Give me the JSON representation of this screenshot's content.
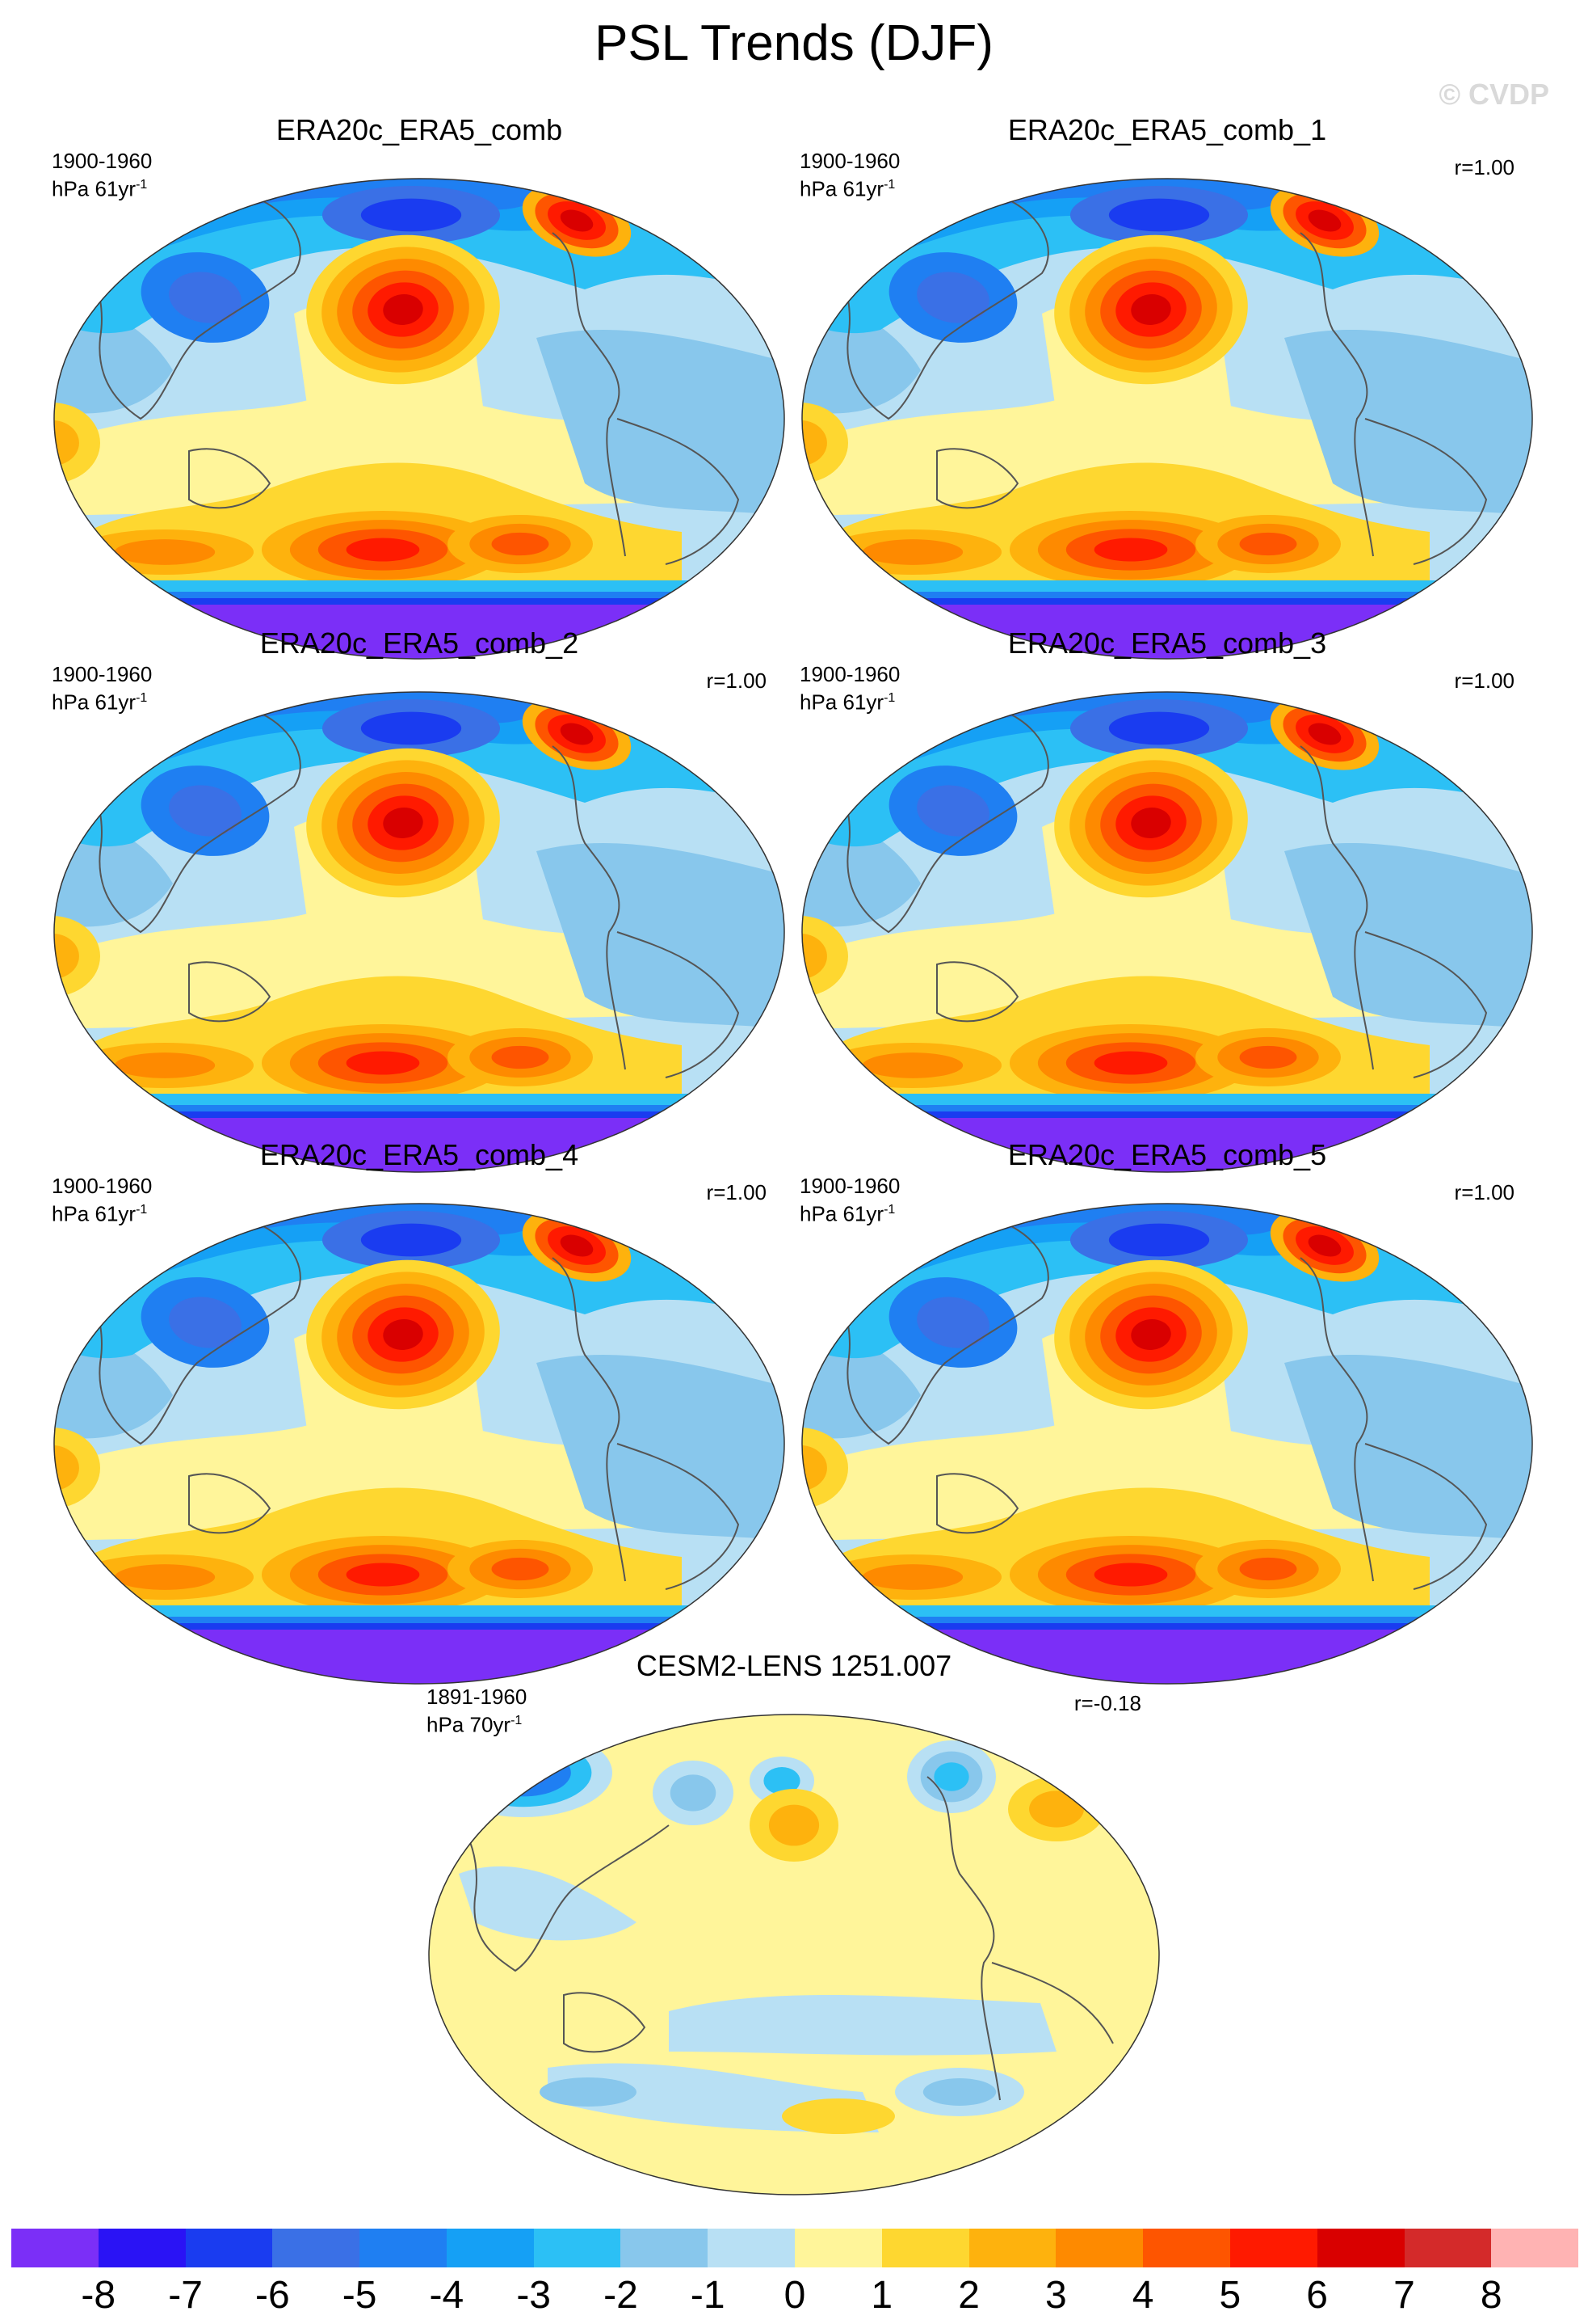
{
  "page": {
    "title": "PSL Trends (DJF)",
    "watermark": "© CVDP"
  },
  "colors": {
    "levels": [
      "#7b2ff7",
      "#2a13f5",
      "#1a3cf0",
      "#3a70e6",
      "#1f7ff2",
      "#15a0f5",
      "#2cc0f5",
      "#88c7ec",
      "#b8e0f4",
      "#fff59a",
      "#fed730",
      "#feb20d",
      "#fe8a00",
      "#fe5500",
      "#ff1a00",
      "#d90000",
      "#d42a2a",
      "#ffb3b3"
    ],
    "land": "#555555"
  },
  "panels": [
    {
      "title": "ERA20c_ERA5_comb",
      "period": "1900-1960",
      "units": "hPa 61yr",
      "units_exp": "-1",
      "corr": "",
      "pattern": "obs"
    },
    {
      "title": "ERA20c_ERA5_comb_1",
      "period": "1900-1960",
      "units": "hPa 61yr",
      "units_exp": "-1",
      "corr": "r=1.00",
      "pattern": "obs"
    },
    {
      "title": "ERA20c_ERA5_comb_2",
      "period": "1900-1960",
      "units": "hPa 61yr",
      "units_exp": "-1",
      "corr": "r=1.00",
      "pattern": "obs"
    },
    {
      "title": "ERA20c_ERA5_comb_3",
      "period": "1900-1960",
      "units": "hPa 61yr",
      "units_exp": "-1",
      "corr": "r=1.00",
      "pattern": "obs"
    },
    {
      "title": "ERA20c_ERA5_comb_4",
      "period": "1900-1960",
      "units": "hPa 61yr",
      "units_exp": "-1",
      "corr": "r=1.00",
      "pattern": "obs"
    },
    {
      "title": "ERA20c_ERA5_comb_5",
      "period": "1900-1960",
      "units": "hPa 61yr",
      "units_exp": "-1",
      "corr": "r=1.00",
      "pattern": "obs"
    },
    {
      "title": "CESM2-LENS 1251.007",
      "period": "1891-1960",
      "units": "hPa 70yr",
      "units_exp": "-1",
      "corr": "r=-0.18",
      "pattern": "model"
    }
  ],
  "colorbar": {
    "labels": [
      "-8",
      "-7",
      "-6",
      "-5",
      "-4",
      "-3",
      "-2",
      "-1",
      "0",
      "1",
      "2",
      "3",
      "4",
      "5",
      "6",
      "7",
      "8"
    ]
  }
}
